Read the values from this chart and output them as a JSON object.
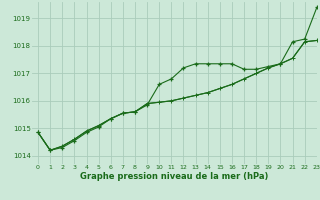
{
  "bg_color": "#cce8d8",
  "grid_color": "#aaccbb",
  "line_color": "#1a6b1a",
  "marker_color": "#1a6b1a",
  "xlabel": "Graphe pression niveau de la mer (hPa)",
  "xlim": [
    -0.5,
    23
  ],
  "ylim": [
    1013.7,
    1019.6
  ],
  "yticks": [
    1014,
    1015,
    1016,
    1017,
    1018,
    1019
  ],
  "xticks": [
    0,
    1,
    2,
    3,
    4,
    5,
    6,
    7,
    8,
    9,
    10,
    11,
    12,
    13,
    14,
    15,
    16,
    17,
    18,
    19,
    20,
    21,
    22,
    23
  ],
  "series1_x": [
    0,
    1,
    2,
    3,
    4,
    5,
    6,
    7,
    8,
    9,
    10,
    11,
    12,
    13,
    14,
    15,
    16,
    17,
    18,
    19,
    20,
    21,
    22,
    23
  ],
  "series1_y": [
    1014.85,
    1014.2,
    1014.3,
    1014.55,
    1014.85,
    1015.05,
    1015.35,
    1015.55,
    1015.6,
    1015.85,
    1016.6,
    1016.8,
    1017.2,
    1017.35,
    1017.35,
    1017.35,
    1017.35,
    1017.15,
    1017.15,
    1017.25,
    1017.35,
    1018.15,
    1018.25,
    1019.4
  ],
  "series2_x": [
    0,
    1,
    2,
    3,
    4,
    5,
    6,
    7,
    8,
    9,
    10,
    11,
    12,
    13,
    14,
    15,
    16,
    17,
    18,
    19,
    20,
    21,
    22,
    23
  ],
  "series2_y": [
    1014.85,
    1014.2,
    1014.35,
    1014.6,
    1014.9,
    1015.1,
    1015.35,
    1015.55,
    1015.6,
    1015.9,
    1015.95,
    1016.0,
    1016.1,
    1016.2,
    1016.3,
    1016.45,
    1016.6,
    1016.8,
    1017.0,
    1017.2,
    1017.35,
    1017.55,
    1018.15,
    1018.2
  ],
  "series3_x": [
    0,
    1,
    2,
    3,
    4,
    5,
    6,
    7,
    8,
    9,
    10,
    11,
    12,
    13,
    14,
    15,
    16,
    17,
    18,
    19,
    20,
    21,
    22,
    23
  ],
  "series3_y": [
    1014.85,
    1014.2,
    1014.35,
    1014.6,
    1014.9,
    1015.1,
    1015.35,
    1015.55,
    1015.6,
    1015.9,
    1015.95,
    1016.0,
    1016.1,
    1016.2,
    1016.3,
    1016.45,
    1016.6,
    1016.8,
    1017.0,
    1017.2,
    1017.35,
    1017.55,
    1018.15,
    1018.2
  ]
}
